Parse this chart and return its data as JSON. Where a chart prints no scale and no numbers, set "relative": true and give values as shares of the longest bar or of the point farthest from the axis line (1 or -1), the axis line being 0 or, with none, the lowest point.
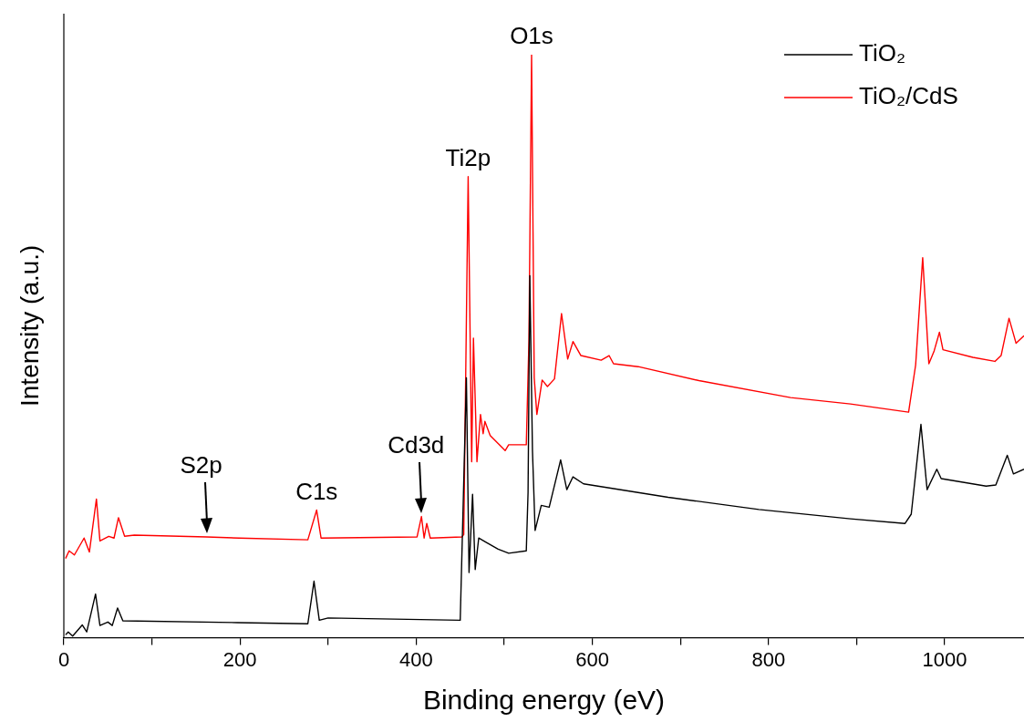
{
  "chart_data": {
    "type": "line",
    "relative": true,
    "xlabel": "Binding energy (eV)",
    "ylabel": "Intensity (a.u.)",
    "xlim": [
      0,
      1090
    ],
    "xticks": [
      0,
      {
        "value": 100,
        "label": null
      },
      200,
      {
        "value": 300,
        "label": null
      },
      400,
      {
        "value": 500,
        "label": null
      },
      600,
      {
        "value": 700,
        "label": null
      },
      800,
      {
        "value": 900,
        "label": null
      },
      1000
    ],
    "legend": "top right",
    "series": [
      {
        "name": "TiO₂",
        "color": "#000000",
        "x": [
          2,
          5,
          10,
          21,
          26,
          36,
          41,
          50,
          55,
          61,
          67,
          197,
          277,
          284,
          290,
          300,
          450,
          457,
          460,
          464,
          467,
          471,
          478,
          493,
          505,
          525,
          527,
          529,
          532,
          535,
          542,
          551,
          564,
          571,
          578,
          590,
          686,
          789,
          893,
          955,
          962,
          973,
          980,
          991,
          996,
          1047,
          1058,
          1071,
          1078,
          1090
        ],
        "values": [
          0.005,
          0.01,
          0.003,
          0.022,
          0.01,
          0.075,
          0.021,
          0.027,
          0.021,
          0.051,
          0.029,
          0.026,
          0.024,
          0.097,
          0.03,
          0.034,
          0.03,
          0.446,
          0.112,
          0.246,
          0.117,
          0.171,
          0.165,
          0.152,
          0.145,
          0.149,
          0.249,
          0.621,
          0.321,
          0.184,
          0.227,
          0.224,
          0.305,
          0.254,
          0.276,
          0.264,
          0.241,
          0.22,
          0.204,
          0.196,
          0.212,
          0.366,
          0.254,
          0.289,
          0.273,
          0.26,
          0.262,
          0.313,
          0.281,
          0.289
        ]
      },
      {
        "name": "TiO₂/CdS",
        "color": "#ff0000",
        "x": [
          2,
          6,
          12,
          23,
          29,
          37,
          41,
          51,
          57,
          62,
          69,
          80,
          162,
          199,
          277,
          287,
          292,
          401,
          406,
          409,
          412,
          416,
          452,
          454,
          459,
          463,
          465,
          469,
          473,
          476,
          478,
          484,
          501,
          505,
          525,
          528,
          531,
          534,
          537,
          543,
          549,
          557,
          565,
          572,
          578,
          587,
          610,
          619,
          624,
          652,
          721,
          825,
          893,
          959,
          967,
          975,
          982,
          988,
          994,
          998,
          1032,
          1057,
          1064,
          1073,
          1081,
          1090
        ],
        "values": [
          0.136,
          0.149,
          0.142,
          0.171,
          0.147,
          0.238,
          0.166,
          0.174,
          0.171,
          0.206,
          0.174,
          0.176,
          0.173,
          0.171,
          0.168,
          0.219,
          0.171,
          0.173,
          0.208,
          0.171,
          0.196,
          0.171,
          0.173,
          0.177,
          0.791,
          0.302,
          0.514,
          0.302,
          0.383,
          0.35,
          0.371,
          0.347,
          0.321,
          0.331,
          0.331,
          0.51,
          1,
          0.446,
          0.383,
          0.442,
          0.431,
          0.444,
          0.556,
          0.478,
          0.508,
          0.484,
          0.476,
          0.484,
          0.47,
          0.465,
          0.441,
          0.412,
          0.401,
          0.387,
          0.468,
          0.652,
          0.47,
          0.492,
          0.524,
          0.494,
          0.481,
          0.474,
          0.484,
          0.548,
          0.505,
          0.518
        ]
      }
    ],
    "annotations": [
      {
        "text": "S2p",
        "x": 162,
        "y": 0.173
      },
      {
        "text": "C1s",
        "x": 287,
        "y": 0.219
      },
      {
        "text": "Cd3d",
        "x": 406,
        "y": 0.208
      },
      {
        "text": "Ti2p",
        "x": 459,
        "y": 0.791
      },
      {
        "text": "O1s",
        "x": 531,
        "y": 1
      }
    ]
  }
}
